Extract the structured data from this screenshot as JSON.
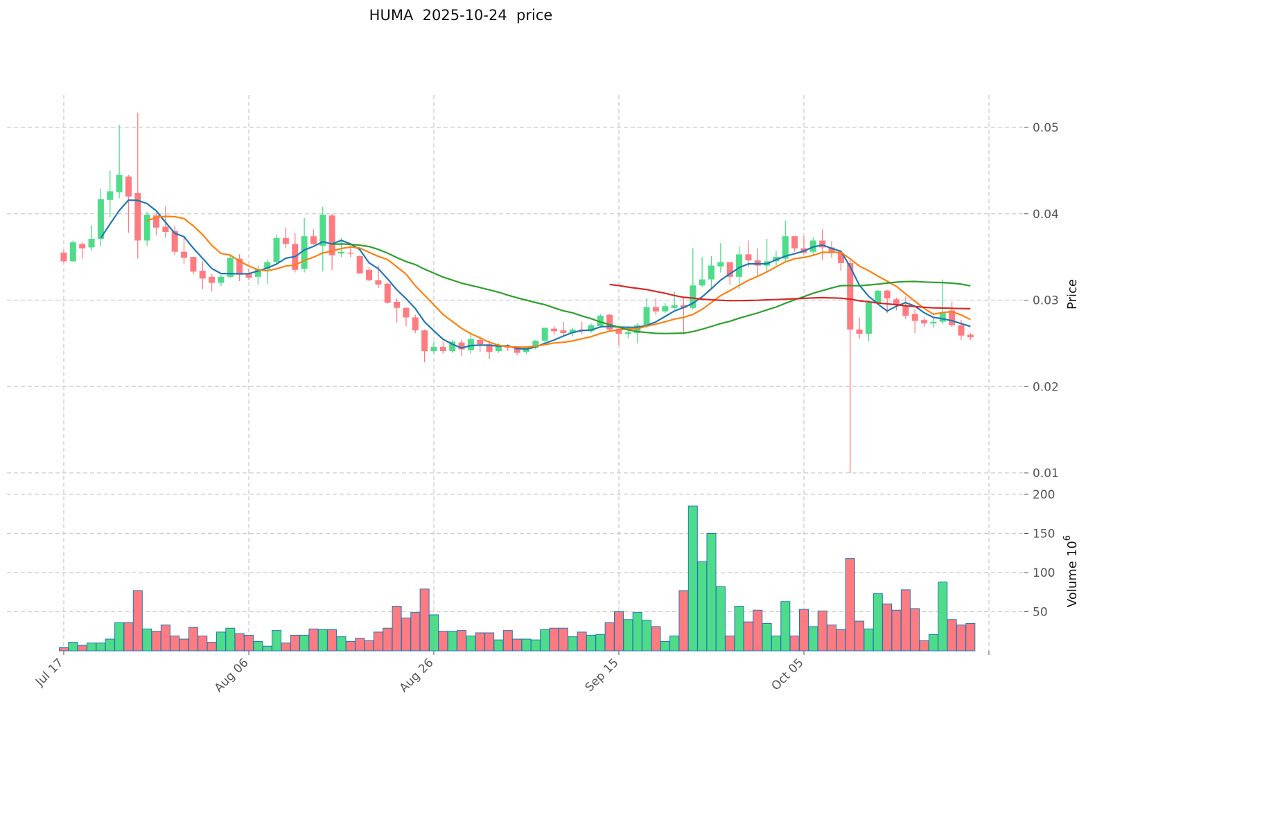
{
  "chart_data": {
    "type": "candlestick",
    "title": "HUMA  2025-10-24  price",
    "start_date": "2025-07-17",
    "xticks": [
      "Jul 17",
      "Aug 06",
      "Aug 26",
      "Sep 15",
      "Oct 05"
    ],
    "xtick_index": [
      0,
      20,
      40,
      60,
      80
    ],
    "price_axis": {
      "label": "Price",
      "ticks": [
        "0.01",
        "0.02",
        "0.03",
        "0.04",
        "0.05"
      ],
      "tick_values": [
        0.01,
        0.02,
        0.03,
        0.04,
        0.05
      ],
      "ylim": [
        0.0095,
        0.054
      ]
    },
    "volume_axis": {
      "label": "Volume",
      "exponent": "10",
      "exponent_power": "6",
      "ticks": [
        "50",
        "100",
        "150",
        "200"
      ],
      "tick_values": [
        50,
        100,
        150,
        200
      ],
      "ylim": [
        0,
        200
      ]
    },
    "grid": true,
    "colors": {
      "up": "#4fdc8a",
      "down": "#ff7b82",
      "volume_edge": "#1f77b4",
      "ma5": "#1f77b4",
      "ma10": "#ff7f0e",
      "ma30": "#2ca02c",
      "ma60": "#d62728"
    },
    "moving_averages": [
      5,
      10,
      30,
      60
    ],
    "ohlc": [
      [
        0.0355,
        0.0358,
        0.0343,
        0.0345
      ],
      [
        0.0345,
        0.0369,
        0.0344,
        0.0367
      ],
      [
        0.0365,
        0.0367,
        0.0348,
        0.036
      ],
      [
        0.0361,
        0.0387,
        0.0357,
        0.0371
      ],
      [
        0.0371,
        0.0429,
        0.0362,
        0.0417
      ],
      [
        0.0416,
        0.045,
        0.0396,
        0.0426
      ],
      [
        0.0425,
        0.0503,
        0.0418,
        0.0445
      ],
      [
        0.0443,
        0.0445,
        0.0378,
        0.042
      ],
      [
        0.0424,
        0.0517,
        0.0348,
        0.0369
      ],
      [
        0.0369,
        0.0402,
        0.0363,
        0.0399
      ],
      [
        0.0398,
        0.0401,
        0.0375,
        0.0384
      ],
      [
        0.0385,
        0.0409,
        0.0372,
        0.0379
      ],
      [
        0.038,
        0.0386,
        0.0352,
        0.0356
      ],
      [
        0.0356,
        0.0374,
        0.0342,
        0.0349
      ],
      [
        0.035,
        0.035,
        0.033,
        0.0333
      ],
      [
        0.0334,
        0.0345,
        0.0313,
        0.0325
      ],
      [
        0.0327,
        0.033,
        0.031,
        0.032
      ],
      [
        0.032,
        0.0329,
        0.0316,
        0.0327
      ],
      [
        0.0327,
        0.0352,
        0.0326,
        0.0349
      ],
      [
        0.0348,
        0.0353,
        0.0322,
        0.0331
      ],
      [
        0.0331,
        0.0336,
        0.0323,
        0.0326
      ],
      [
        0.0327,
        0.034,
        0.0318,
        0.0336
      ],
      [
        0.0336,
        0.0347,
        0.0319,
        0.0344
      ],
      [
        0.0344,
        0.0376,
        0.0342,
        0.0372
      ],
      [
        0.0372,
        0.0384,
        0.036,
        0.0365
      ],
      [
        0.0365,
        0.0378,
        0.0332,
        0.0335
      ],
      [
        0.0336,
        0.0395,
        0.0332,
        0.0374
      ],
      [
        0.0374,
        0.0382,
        0.0364,
        0.0365
      ],
      [
        0.0363,
        0.0408,
        0.0333,
        0.0399
      ],
      [
        0.0398,
        0.04,
        0.0335,
        0.0352
      ],
      [
        0.0354,
        0.0372,
        0.035,
        0.0356
      ],
      [
        0.0355,
        0.0366,
        0.035,
        0.0354
      ],
      [
        0.0351,
        0.0352,
        0.033,
        0.0331
      ],
      [
        0.0335,
        0.0338,
        0.0322,
        0.0323
      ],
      [
        0.0323,
        0.034,
        0.0314,
        0.0318
      ],
      [
        0.0319,
        0.032,
        0.0296,
        0.0297
      ],
      [
        0.0298,
        0.0302,
        0.0274,
        0.0291
      ],
      [
        0.0291,
        0.0292,
        0.027,
        0.028
      ],
      [
        0.028,
        0.0283,
        0.0262,
        0.0265
      ],
      [
        0.0265,
        0.0266,
        0.0228,
        0.0241
      ],
      [
        0.0241,
        0.0252,
        0.0238,
        0.0246
      ],
      [
        0.0246,
        0.0252,
        0.0238,
        0.0241
      ],
      [
        0.0241,
        0.0254,
        0.0239,
        0.0252
      ],
      [
        0.0251,
        0.0254,
        0.0235,
        0.0243
      ],
      [
        0.0242,
        0.0261,
        0.0238,
        0.0255
      ],
      [
        0.0254,
        0.0258,
        0.024,
        0.0249
      ],
      [
        0.0249,
        0.0253,
        0.0232,
        0.024
      ],
      [
        0.0241,
        0.025,
        0.0239,
        0.0247
      ],
      [
        0.0247,
        0.0249,
        0.0241,
        0.0245
      ],
      [
        0.0245,
        0.0247,
        0.0236,
        0.0239
      ],
      [
        0.024,
        0.0247,
        0.0238,
        0.0245
      ],
      [
        0.0245,
        0.0254,
        0.0243,
        0.0253
      ],
      [
        0.0253,
        0.0268,
        0.0251,
        0.0268
      ],
      [
        0.0267,
        0.027,
        0.026,
        0.0264
      ],
      [
        0.0265,
        0.0275,
        0.0258,
        0.0262
      ],
      [
        0.0262,
        0.0268,
        0.0258,
        0.0266
      ],
      [
        0.0266,
        0.0275,
        0.0261,
        0.0264
      ],
      [
        0.0264,
        0.0273,
        0.0262,
        0.0271
      ],
      [
        0.027,
        0.0284,
        0.0268,
        0.0282
      ],
      [
        0.0283,
        0.0284,
        0.0264,
        0.0266
      ],
      [
        0.0267,
        0.027,
        0.0248,
        0.0261
      ],
      [
        0.0261,
        0.027,
        0.0256,
        0.0263
      ],
      [
        0.0262,
        0.0273,
        0.025,
        0.0271
      ],
      [
        0.0271,
        0.0302,
        0.0268,
        0.0292
      ],
      [
        0.0292,
        0.0302,
        0.0283,
        0.0287
      ],
      [
        0.0287,
        0.0297,
        0.0285,
        0.0293
      ],
      [
        0.0291,
        0.031,
        0.0289,
        0.0294
      ],
      [
        0.0294,
        0.0304,
        0.026,
        0.0291
      ],
      [
        0.0291,
        0.036,
        0.0289,
        0.0317
      ],
      [
        0.0317,
        0.035,
        0.0315,
        0.0324
      ],
      [
        0.0324,
        0.0351,
        0.0313,
        0.034
      ],
      [
        0.0339,
        0.0366,
        0.0332,
        0.0344
      ],
      [
        0.0344,
        0.0344,
        0.0318,
        0.0327
      ],
      [
        0.0327,
        0.0362,
        0.0313,
        0.0353
      ],
      [
        0.0353,
        0.0369,
        0.0338,
        0.0346
      ],
      [
        0.0346,
        0.036,
        0.0327,
        0.034
      ],
      [
        0.034,
        0.0371,
        0.0332,
        0.0345
      ],
      [
        0.0345,
        0.0357,
        0.034,
        0.035
      ],
      [
        0.0348,
        0.0392,
        0.0344,
        0.0374
      ],
      [
        0.0374,
        0.0374,
        0.0356,
        0.036
      ],
      [
        0.036,
        0.0374,
        0.0353,
        0.0355
      ],
      [
        0.0356,
        0.0373,
        0.0352,
        0.0369
      ],
      [
        0.0369,
        0.0382,
        0.0346,
        0.0361
      ],
      [
        0.0361,
        0.0368,
        0.0349,
        0.0355
      ],
      [
        0.0355,
        0.0356,
        0.0334,
        0.0343
      ],
      [
        0.0343,
        0.0346,
        0.01,
        0.0266
      ],
      [
        0.0266,
        0.028,
        0.0255,
        0.0261
      ],
      [
        0.0261,
        0.0298,
        0.0252,
        0.0297
      ],
      [
        0.0297,
        0.0312,
        0.0295,
        0.0311
      ],
      [
        0.0311,
        0.0312,
        0.0285,
        0.0302
      ],
      [
        0.0301,
        0.0303,
        0.0288,
        0.0294
      ],
      [
        0.0294,
        0.0304,
        0.0278,
        0.0282
      ],
      [
        0.0284,
        0.0289,
        0.0262,
        0.0276
      ],
      [
        0.0277,
        0.028,
        0.0269,
        0.0273
      ],
      [
        0.0273,
        0.028,
        0.0268,
        0.0275
      ],
      [
        0.0275,
        0.0324,
        0.0272,
        0.0286
      ],
      [
        0.0288,
        0.0298,
        0.0269,
        0.0271
      ],
      [
        0.0271,
        0.0277,
        0.0254,
        0.0259
      ],
      [
        0.026,
        0.0262,
        0.0254,
        0.0257
      ]
    ],
    "volume": [
      4,
      11,
      7,
      10,
      10,
      15,
      36,
      36,
      77,
      28,
      25,
      33,
      19,
      15,
      30,
      19,
      11,
      24,
      29,
      22,
      20,
      12,
      6,
      26,
      10,
      20,
      20,
      28,
      27,
      27,
      18,
      12,
      16,
      13,
      24,
      29,
      57,
      42,
      49,
      79,
      46,
      25,
      25,
      26,
      19,
      23,
      23,
      14,
      26,
      15,
      15,
      14,
      27,
      29,
      29,
      18,
      24,
      20,
      21,
      36,
      50,
      40,
      49,
      39,
      31,
      12,
      19,
      77,
      185,
      114,
      150,
      82,
      19,
      57,
      37,
      52,
      35,
      19,
      63,
      19,
      53,
      31,
      51,
      33,
      27,
      118,
      38,
      28,
      73,
      60,
      52,
      78,
      54,
      13,
      21,
      88,
      40,
      33,
      35
    ]
  }
}
